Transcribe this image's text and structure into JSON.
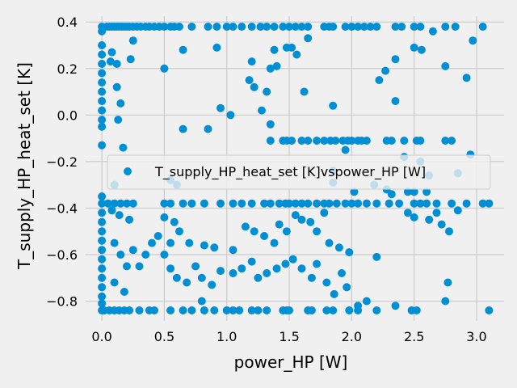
{
  "chart_data": {
    "type": "scatter",
    "xlabel": "power_HP [W]",
    "ylabel": "T_supply_HP_heat_set [K]",
    "xlim": [
      -0.13,
      3.22
    ],
    "ylim": [
      -0.885,
      0.425
    ],
    "x_ticks": [
      0.0,
      0.5,
      1.0,
      1.5,
      2.0,
      2.5,
      3.0
    ],
    "x_tick_labels": [
      "0.0",
      "0.5",
      "1.0",
      "1.5",
      "2.0",
      "2.5",
      "3.0"
    ],
    "y_ticks": [
      -0.8,
      -0.6,
      -0.4,
      -0.2,
      0.0,
      0.2,
      0.4
    ],
    "y_tick_labels": [
      "−0.8",
      "−0.6",
      "−0.4",
      "−0.2",
      "0.0",
      "0.2",
      "0.4"
    ],
    "grid": true,
    "legend_position": "center-right",
    "series": [
      {
        "name": "T_supply_HP_heat_set [K]vspower_HP [W]",
        "color": "#008fd5",
        "points": [
          [
            0.0,
            0.38
          ],
          [
            0.0,
            0.36
          ],
          [
            0.0,
            0.3
          ],
          [
            0.0,
            0.26
          ],
          [
            0.0,
            0.22
          ],
          [
            0.0,
            0.18
          ],
          [
            0.0,
            0.14
          ],
          [
            0.0,
            0.1
          ],
          [
            0.0,
            0.06
          ],
          [
            0.0,
            0.02
          ],
          [
            0.0,
            -0.02
          ],
          [
            0.0,
            -0.05
          ],
          [
            0.0,
            -0.13
          ],
          [
            0.0,
            -0.35
          ],
          [
            0.0,
            -0.38
          ],
          [
            0.0,
            -0.42
          ],
          [
            0.0,
            -0.46
          ],
          [
            0.0,
            -0.5
          ],
          [
            0.0,
            -0.54
          ],
          [
            0.0,
            -0.58
          ],
          [
            0.0,
            -0.62
          ],
          [
            0.0,
            -0.66
          ],
          [
            0.0,
            -0.7
          ],
          [
            0.0,
            -0.74
          ],
          [
            0.0,
            -0.78
          ],
          [
            0.0,
            -0.81
          ],
          [
            0.0,
            -0.84
          ],
          [
            0.04,
            0.38
          ],
          [
            0.06,
            0.38
          ],
          [
            0.08,
            0.38
          ],
          [
            0.1,
            0.38
          ],
          [
            0.12,
            0.38
          ],
          [
            0.14,
            0.38
          ],
          [
            0.16,
            0.38
          ],
          [
            0.18,
            0.38
          ],
          [
            0.2,
            0.38
          ],
          [
            0.22,
            0.38
          ],
          [
            0.25,
            0.38
          ],
          [
            0.28,
            0.38
          ],
          [
            0.31,
            0.38
          ],
          [
            0.35,
            0.38
          ],
          [
            0.38,
            0.38
          ],
          [
            0.42,
            0.38
          ],
          [
            0.46,
            0.38
          ],
          [
            0.5,
            0.38
          ],
          [
            0.55,
            0.38
          ],
          [
            0.58,
            0.38
          ],
          [
            0.62,
            0.38
          ],
          [
            0.72,
            0.38
          ],
          [
            0.85,
            0.38
          ],
          [
            0.92,
            0.38
          ],
          [
            1.0,
            0.38
          ],
          [
            1.05,
            0.38
          ],
          [
            1.12,
            0.38
          ],
          [
            1.2,
            0.38
          ],
          [
            1.27,
            0.38
          ],
          [
            1.32,
            0.38
          ],
          [
            1.38,
            0.38
          ],
          [
            1.45,
            0.38
          ],
          [
            1.5,
            0.38
          ],
          [
            1.55,
            0.38
          ],
          [
            1.6,
            0.38
          ],
          [
            1.65,
            0.38
          ],
          [
            1.78,
            0.38
          ],
          [
            1.82,
            0.38
          ],
          [
            1.85,
            0.38
          ],
          [
            1.95,
            0.38
          ],
          [
            2.0,
            0.38
          ],
          [
            2.05,
            0.38
          ],
          [
            2.1,
            0.38
          ],
          [
            2.15,
            0.38
          ],
          [
            2.2,
            0.38
          ],
          [
            2.35,
            0.38
          ],
          [
            2.4,
            0.38
          ],
          [
            2.5,
            0.38
          ],
          [
            2.55,
            0.38
          ],
          [
            2.75,
            0.38
          ],
          [
            2.83,
            0.38
          ],
          [
            3.05,
            0.38
          ],
          [
            0.08,
            0.27
          ],
          [
            0.12,
            0.22
          ],
          [
            0.07,
            0.23
          ],
          [
            0.25,
            0.32
          ],
          [
            0.23,
            0.24
          ],
          [
            0.12,
            0.12
          ],
          [
            0.15,
            0.05
          ],
          [
            0.13,
            -0.02
          ],
          [
            0.17,
            -0.14
          ],
          [
            0.5,
            0.2
          ],
          [
            0.65,
            0.28
          ],
          [
            0.92,
            0.29
          ],
          [
            1.38,
            0.28
          ],
          [
            1.48,
            0.29
          ],
          [
            1.52,
            0.29
          ],
          [
            1.56,
            0.26
          ],
          [
            1.65,
            0.33
          ],
          [
            1.2,
            0.23
          ],
          [
            1.18,
            0.15
          ],
          [
            1.35,
            0.2
          ],
          [
            1.32,
            0.1
          ],
          [
            1.4,
            0.21
          ],
          [
            1.62,
            0.1
          ],
          [
            1.85,
            0.04
          ],
          [
            2.22,
            0.15
          ],
          [
            2.27,
            0.19
          ],
          [
            2.35,
            0.24
          ],
          [
            2.5,
            0.29
          ],
          [
            2.56,
            0.28
          ],
          [
            2.65,
            0.36
          ],
          [
            2.75,
            0.21
          ],
          [
            2.92,
            0.16
          ],
          [
            2.97,
            0.32
          ],
          [
            2.35,
            0.06
          ],
          [
            0.95,
            0.03
          ],
          [
            1.03,
            0.0
          ],
          [
            1.22,
            0.12
          ],
          [
            1.28,
            0.02
          ],
          [
            1.35,
            -0.04
          ],
          [
            0.85,
            -0.06
          ],
          [
            0.65,
            -0.06
          ],
          [
            1.35,
            -0.11
          ],
          [
            1.45,
            -0.11
          ],
          [
            1.48,
            -0.11
          ],
          [
            1.52,
            -0.11
          ],
          [
            1.6,
            -0.11
          ],
          [
            1.65,
            -0.11
          ],
          [
            1.72,
            -0.11
          ],
          [
            1.78,
            -0.11
          ],
          [
            1.83,
            -0.11
          ],
          [
            1.87,
            -0.11
          ],
          [
            1.93,
            -0.11
          ],
          [
            1.97,
            -0.11
          ],
          [
            2.0,
            -0.11
          ],
          [
            2.05,
            -0.11
          ],
          [
            2.08,
            -0.11
          ],
          [
            2.12,
            -0.11
          ],
          [
            2.28,
            -0.11
          ],
          [
            2.32,
            -0.11
          ],
          [
            2.42,
            -0.11
          ],
          [
            2.52,
            -0.11
          ],
          [
            2.55,
            -0.11
          ],
          [
            2.75,
            -0.11
          ],
          [
            2.8,
            -0.11
          ],
          [
            1.95,
            -0.15
          ],
          [
            2.42,
            -0.18
          ],
          [
            2.55,
            -0.2
          ],
          [
            2.95,
            -0.17
          ],
          [
            1.85,
            -0.24
          ],
          [
            2.62,
            -0.26
          ],
          [
            2.85,
            -0.25
          ],
          [
            0.55,
            -0.28
          ],
          [
            0.6,
            -0.3
          ],
          [
            0.1,
            -0.3
          ],
          [
            1.85,
            -0.29
          ],
          [
            2.02,
            -0.33
          ],
          [
            2.18,
            -0.3
          ],
          [
            2.28,
            -0.32
          ],
          [
            2.32,
            -0.34
          ],
          [
            2.45,
            -0.33
          ],
          [
            2.5,
            -0.33
          ],
          [
            2.6,
            -0.33
          ],
          [
            0.05,
            -0.38
          ],
          [
            0.1,
            -0.38
          ],
          [
            0.15,
            -0.38
          ],
          [
            0.2,
            -0.38
          ],
          [
            0.25,
            -0.38
          ],
          [
            0.5,
            -0.38
          ],
          [
            0.55,
            -0.38
          ],
          [
            0.65,
            -0.38
          ],
          [
            0.72,
            -0.38
          ],
          [
            0.82,
            -0.38
          ],
          [
            0.95,
            -0.38
          ],
          [
            1.05,
            -0.38
          ],
          [
            1.12,
            -0.38
          ],
          [
            1.2,
            -0.38
          ],
          [
            1.3,
            -0.38
          ],
          [
            1.35,
            -0.38
          ],
          [
            1.42,
            -0.38
          ],
          [
            1.47,
            -0.38
          ],
          [
            1.5,
            -0.38
          ],
          [
            1.55,
            -0.38
          ],
          [
            1.6,
            -0.38
          ],
          [
            1.65,
            -0.38
          ],
          [
            1.72,
            -0.38
          ],
          [
            1.78,
            -0.38
          ],
          [
            1.82,
            -0.38
          ],
          [
            1.88,
            -0.38
          ],
          [
            1.95,
            -0.38
          ],
          [
            2.0,
            -0.38
          ],
          [
            2.05,
            -0.38
          ],
          [
            2.12,
            -0.38
          ],
          [
            2.2,
            -0.38
          ],
          [
            2.3,
            -0.38
          ],
          [
            2.38,
            -0.38
          ],
          [
            2.5,
            -0.38
          ],
          [
            2.55,
            -0.38
          ],
          [
            2.6,
            -0.38
          ],
          [
            2.68,
            -0.38
          ],
          [
            2.8,
            -0.38
          ],
          [
            2.92,
            -0.38
          ],
          [
            3.05,
            -0.38
          ],
          [
            3.1,
            -0.38
          ],
          [
            0.08,
            -0.41
          ],
          [
            0.14,
            -0.43
          ],
          [
            0.22,
            -0.45
          ],
          [
            0.5,
            -0.44
          ],
          [
            0.58,
            -0.46
          ],
          [
            0.62,
            -0.5
          ],
          [
            0.45,
            -0.52
          ],
          [
            0.55,
            -0.55
          ],
          [
            0.7,
            -0.55
          ],
          [
            0.82,
            -0.56
          ],
          [
            0.9,
            -0.57
          ],
          [
            1.05,
            -0.58
          ],
          [
            1.15,
            -0.48
          ],
          [
            1.22,
            -0.5
          ],
          [
            1.3,
            -0.52
          ],
          [
            1.38,
            -0.55
          ],
          [
            1.42,
            -0.47
          ],
          [
            1.48,
            -0.5
          ],
          [
            1.55,
            -0.43
          ],
          [
            1.6,
            -0.45
          ],
          [
            1.67,
            -0.46
          ],
          [
            1.72,
            -0.5
          ],
          [
            1.78,
            -0.42
          ],
          [
            1.82,
            -0.55
          ],
          [
            1.9,
            -0.57
          ],
          [
            1.98,
            -0.59
          ],
          [
            2.2,
            -0.61
          ],
          [
            2.45,
            -0.42
          ],
          [
            2.5,
            -0.44
          ],
          [
            2.62,
            -0.45
          ],
          [
            2.68,
            -0.42
          ],
          [
            2.72,
            -0.47
          ],
          [
            2.78,
            -0.5
          ],
          [
            2.85,
            -0.41
          ],
          [
            0.1,
            -0.55
          ],
          [
            0.15,
            -0.6
          ],
          [
            0.2,
            -0.65
          ],
          [
            0.25,
            -0.58
          ],
          [
            0.3,
            -0.65
          ],
          [
            0.35,
            -0.6
          ],
          [
            0.4,
            -0.55
          ],
          [
            0.5,
            -0.6
          ],
          [
            0.55,
            -0.66
          ],
          [
            0.6,
            -0.7
          ],
          [
            0.68,
            -0.72
          ],
          [
            0.75,
            -0.65
          ],
          [
            0.8,
            -0.7
          ],
          [
            0.88,
            -0.73
          ],
          [
            0.95,
            -0.67
          ],
          [
            1.05,
            -0.68
          ],
          [
            1.12,
            -0.66
          ],
          [
            1.2,
            -0.63
          ],
          [
            1.25,
            -0.7
          ],
          [
            1.32,
            -0.68
          ],
          [
            1.4,
            -0.66
          ],
          [
            1.47,
            -0.64
          ],
          [
            1.53,
            -0.62
          ],
          [
            1.6,
            -0.66
          ],
          [
            1.68,
            -0.7
          ],
          [
            1.72,
            -0.64
          ],
          [
            1.8,
            -0.72
          ],
          [
            1.86,
            -0.77
          ],
          [
            1.92,
            -0.68
          ],
          [
            1.96,
            -0.74
          ],
          [
            2.05,
            -0.82
          ],
          [
            2.12,
            -0.8
          ],
          [
            2.35,
            -0.82
          ],
          [
            2.75,
            -0.8
          ],
          [
            2.77,
            -0.72
          ],
          [
            0.1,
            -0.72
          ],
          [
            0.18,
            -0.76
          ],
          [
            0.8,
            -0.8
          ],
          [
            0.02,
            -0.84
          ],
          [
            0.06,
            -0.84
          ],
          [
            0.1,
            -0.84
          ],
          [
            0.14,
            -0.84
          ],
          [
            0.18,
            -0.84
          ],
          [
            0.22,
            -0.84
          ],
          [
            0.3,
            -0.84
          ],
          [
            0.38,
            -0.84
          ],
          [
            0.42,
            -0.84
          ],
          [
            0.55,
            -0.84
          ],
          [
            0.65,
            -0.84
          ],
          [
            0.72,
            -0.84
          ],
          [
            0.82,
            -0.84
          ],
          [
            0.9,
            -0.84
          ],
          [
            1.0,
            -0.84
          ],
          [
            1.05,
            -0.84
          ],
          [
            1.1,
            -0.84
          ],
          [
            1.2,
            -0.84
          ],
          [
            1.25,
            -0.84
          ],
          [
            1.32,
            -0.84
          ],
          [
            1.45,
            -0.84
          ],
          [
            1.48,
            -0.84
          ],
          [
            1.5,
            -0.84
          ],
          [
            1.65,
            -0.84
          ],
          [
            1.68,
            -0.84
          ],
          [
            1.8,
            -0.84
          ],
          [
            1.85,
            -0.84
          ],
          [
            1.98,
            -0.84
          ],
          [
            2.05,
            -0.84
          ],
          [
            2.2,
            -0.84
          ],
          [
            2.48,
            -0.84
          ],
          [
            2.52,
            -0.84
          ],
          [
            3.1,
            -0.84
          ]
        ]
      }
    ]
  }
}
